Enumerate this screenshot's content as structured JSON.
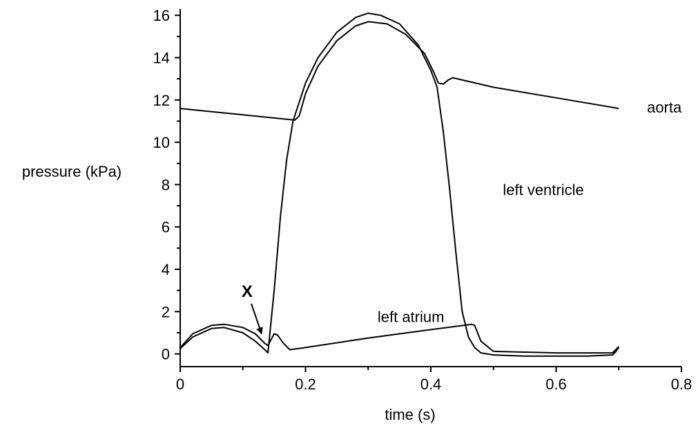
{
  "chart_data": {
    "type": "line",
    "title": "",
    "xlabel": "time (s)",
    "ylabel": "pressure (kPa)",
    "xlim": [
      0,
      0.8
    ],
    "ylim": [
      -0.6,
      16.3
    ],
    "x_ticks": [
      {
        "value": 0,
        "label": "0"
      },
      {
        "value": 0.2,
        "label": "0.2"
      },
      {
        "value": 0.4,
        "label": "0.4"
      },
      {
        "value": 0.6,
        "label": "0.6"
      },
      {
        "value": 0.8,
        "label": "0.8"
      }
    ],
    "y_ticks": [
      {
        "value": 0,
        "label": "0"
      },
      {
        "value": 2,
        "label": "2"
      },
      {
        "value": 4,
        "label": "4"
      },
      {
        "value": 6,
        "label": "6"
      },
      {
        "value": 8,
        "label": "8"
      },
      {
        "value": 10,
        "label": "10"
      },
      {
        "value": 12,
        "label": "12"
      },
      {
        "value": 14,
        "label": "14"
      },
      {
        "value": 16,
        "label": "16"
      }
    ],
    "grid": false,
    "legend": "none",
    "series": [
      {
        "name": "aorta",
        "points": [
          [
            0,
            11.6
          ],
          [
            0.05,
            11.45
          ],
          [
            0.1,
            11.3
          ],
          [
            0.15,
            11.15
          ],
          [
            0.183,
            11.05
          ],
          [
            0.19,
            11.25
          ],
          [
            0.2,
            12.3
          ],
          [
            0.22,
            13.6
          ],
          [
            0.25,
            14.8
          ],
          [
            0.28,
            15.5
          ],
          [
            0.3,
            15.7
          ],
          [
            0.33,
            15.6
          ],
          [
            0.36,
            15.1
          ],
          [
            0.39,
            14.2
          ],
          [
            0.405,
            13.3
          ],
          [
            0.412,
            12.8
          ],
          [
            0.42,
            12.75
          ],
          [
            0.428,
            12.95
          ],
          [
            0.435,
            13.05
          ],
          [
            0.5,
            12.6
          ],
          [
            0.6,
            12.1
          ],
          [
            0.7,
            11.6
          ]
        ]
      },
      {
        "name": "left ventricle",
        "points": [
          [
            0,
            0.25
          ],
          [
            0.02,
            0.8
          ],
          [
            0.05,
            1.2
          ],
          [
            0.07,
            1.25
          ],
          [
            0.1,
            1.0
          ],
          [
            0.12,
            0.6
          ],
          [
            0.135,
            0.2
          ],
          [
            0.14,
            0.05
          ],
          [
            0.15,
            3.0
          ],
          [
            0.16,
            6.5
          ],
          [
            0.17,
            9.2
          ],
          [
            0.18,
            11.0
          ],
          [
            0.2,
            12.8
          ],
          [
            0.22,
            14.0
          ],
          [
            0.25,
            15.2
          ],
          [
            0.28,
            15.9
          ],
          [
            0.3,
            16.1
          ],
          [
            0.32,
            16.0
          ],
          [
            0.35,
            15.6
          ],
          [
            0.38,
            14.6
          ],
          [
            0.4,
            13.4
          ],
          [
            0.41,
            12.6
          ],
          [
            0.42,
            10.5
          ],
          [
            0.43,
            7.8
          ],
          [
            0.44,
            4.8
          ],
          [
            0.45,
            2.0
          ],
          [
            0.46,
            0.8
          ],
          [
            0.47,
            0.3
          ],
          [
            0.48,
            0.05
          ],
          [
            0.5,
            -0.05
          ],
          [
            0.55,
            -0.1
          ],
          [
            0.6,
            -0.1
          ],
          [
            0.65,
            -0.1
          ],
          [
            0.69,
            -0.05
          ],
          [
            0.695,
            0.1
          ],
          [
            0.7,
            0.3
          ]
        ]
      },
      {
        "name": "left atrium",
        "points": [
          [
            0,
            0.3
          ],
          [
            0.02,
            0.95
          ],
          [
            0.05,
            1.35
          ],
          [
            0.07,
            1.4
          ],
          [
            0.1,
            1.25
          ],
          [
            0.12,
            0.95
          ],
          [
            0.135,
            0.5
          ],
          [
            0.14,
            0.4
          ],
          [
            0.15,
            0.95
          ],
          [
            0.155,
            0.9
          ],
          [
            0.165,
            0.5
          ],
          [
            0.175,
            0.2
          ],
          [
            0.2,
            0.3
          ],
          [
            0.3,
            0.75
          ],
          [
            0.4,
            1.15
          ],
          [
            0.465,
            1.4
          ],
          [
            0.47,
            1.35
          ],
          [
            0.48,
            0.6
          ],
          [
            0.5,
            0.12
          ],
          [
            0.6,
            0.05
          ],
          [
            0.69,
            0.05
          ],
          [
            0.7,
            0.35
          ]
        ]
      }
    ],
    "annotations": [
      {
        "text": "aorta",
        "x": 0.745,
        "y": 11.4
      },
      {
        "text": "left ventricle",
        "x": 0.515,
        "y": 7.5
      },
      {
        "text": "left atrium",
        "x": 0.315,
        "y": 1.5
      },
      {
        "text": "X",
        "x": 0.098,
        "y": 2.7,
        "arrow_to": [
          0.13,
          0.95
        ]
      }
    ]
  }
}
